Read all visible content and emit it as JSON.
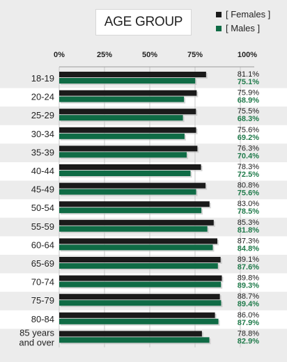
{
  "title": "AGE GROUP",
  "legend": [
    {
      "label": "[ Females ]",
      "color": "#1a1a1a"
    },
    {
      "label": "[ Males ]",
      "color": "#0f6b45"
    }
  ],
  "colors": {
    "females": "#1a1a1a",
    "males": "#0f6b45",
    "females_text": "#1a1a1a",
    "males_text": "#1f7a4a"
  },
  "chart_data": {
    "type": "bar",
    "orientation": "horizontal",
    "title": "AGE GROUP",
    "categories": [
      "18-19",
      "20-24",
      "25-29",
      "30-34",
      "35-39",
      "40-44",
      "45-49",
      "50-54",
      "55-59",
      "60-64",
      "65-69",
      "70-74",
      "75-79",
      "80-84",
      "85 years and over"
    ],
    "series": [
      {
        "name": "[ Females ]",
        "values": [
          81.1,
          75.9,
          75.5,
          75.6,
          76.3,
          78.3,
          80.8,
          83.0,
          85.3,
          87.3,
          89.1,
          89.8,
          88.7,
          86.0,
          78.8
        ],
        "labels": [
          "81.1%",
          "75.9%",
          "75.5%",
          "75.6%",
          "76.3%",
          "78.3%",
          "80.8%",
          "83.0%",
          "85.3%",
          "87.3%",
          "89.1%",
          "89.8%",
          "88.7%",
          "86.0%",
          "78.8%"
        ]
      },
      {
        "name": "[ Males ]",
        "values": [
          75.1,
          68.9,
          68.3,
          69.2,
          70.4,
          72.5,
          75.6,
          78.5,
          81.8,
          84.8,
          87.6,
          89.3,
          89.4,
          87.9,
          82.9
        ],
        "labels": [
          "75.1%",
          "68.9%",
          "68.3%",
          "69.2%",
          "70.4%",
          "72.5%",
          "75.6%",
          "78.5%",
          "81.8%",
          "84.8%",
          "87.6%",
          "89.3%",
          "89.4%",
          "87.9%",
          "82.9%"
        ]
      }
    ],
    "x_ticks": [
      "0%",
      "25%",
      "50%",
      "75%",
      "100%"
    ],
    "xlim": [
      0,
      100
    ],
    "legend_position": "top-right"
  }
}
